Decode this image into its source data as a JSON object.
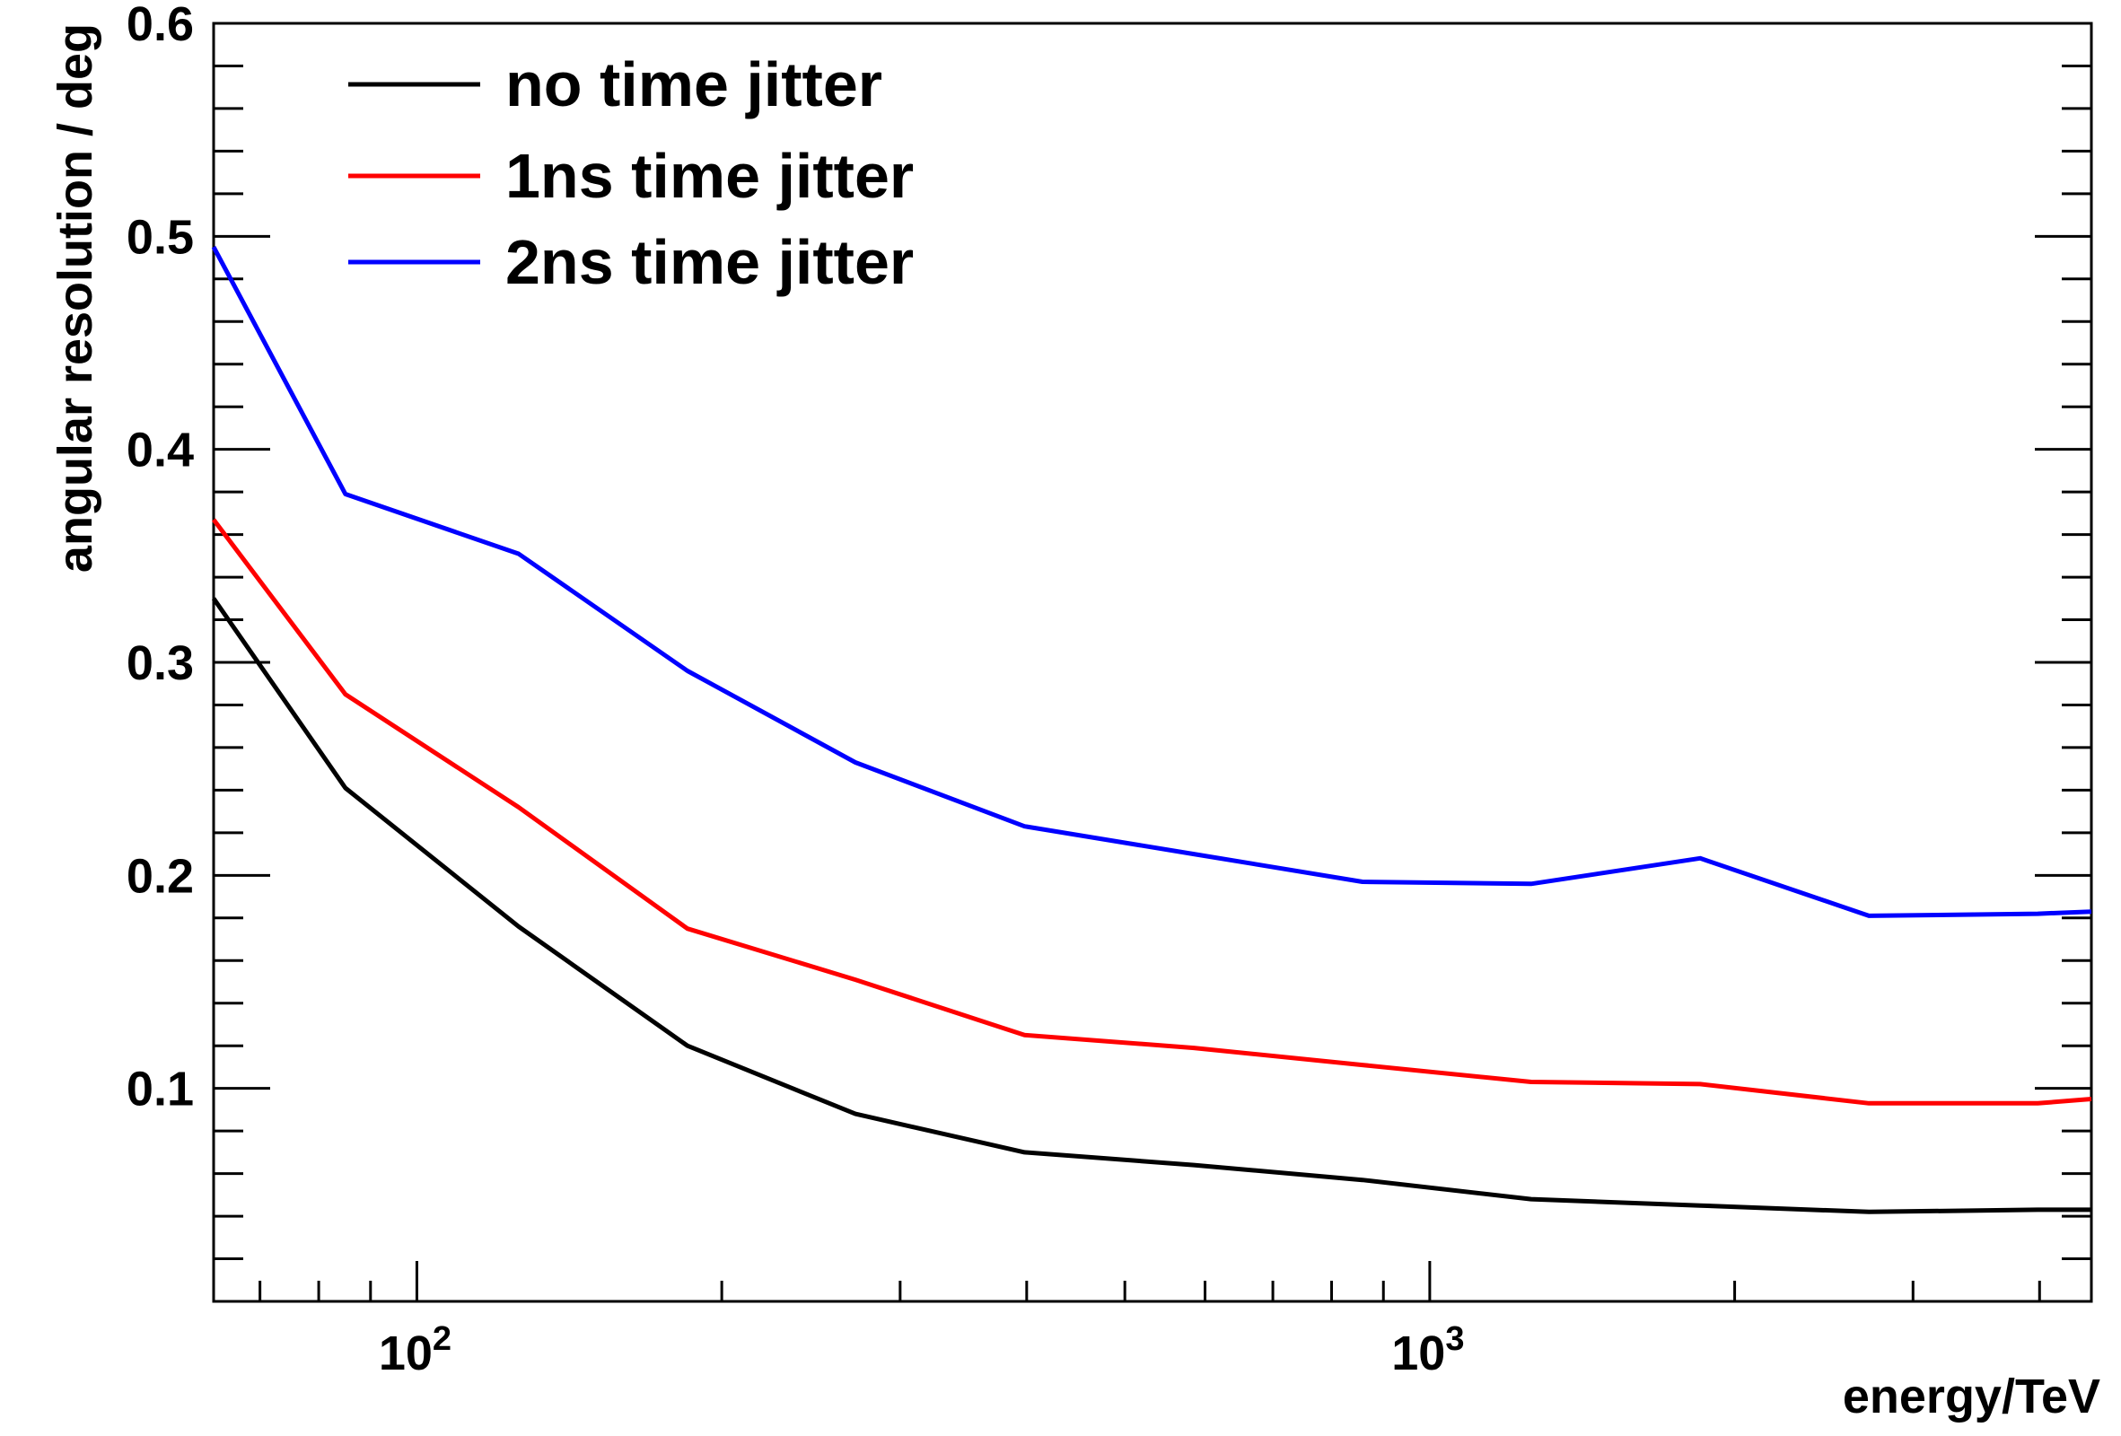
{
  "chart_data": {
    "type": "line",
    "title": "",
    "xlabel": "energy/TeV",
    "ylabel": "angular resolution / deg",
    "x_scale": "log",
    "xlim": [
      63,
      4500
    ],
    "ylim": [
      0,
      0.6
    ],
    "legend_position": "top-left",
    "grid": false,
    "y_ticks": [
      {
        "value": 0.1,
        "label": "0.1"
      },
      {
        "value": 0.2,
        "label": "0.2"
      },
      {
        "value": 0.3,
        "label": "0.3"
      },
      {
        "value": 0.4,
        "label": "0.4"
      },
      {
        "value": 0.5,
        "label": "0.5"
      },
      {
        "value": 0.6,
        "label": "0.6"
      }
    ],
    "x_ticks": [
      {
        "value": 100,
        "base": "10",
        "exp": "2"
      },
      {
        "value": 1000,
        "base": "10",
        "exp": "3"
      }
    ],
    "x": [
      63,
      85,
      126,
      185,
      271,
      398,
      585,
      858,
      1259,
      1849,
      2714,
      3984,
      4500
    ],
    "series": [
      {
        "name": "no time jitter",
        "color": "#000000",
        "values": [
          0.33,
          0.241,
          0.176,
          0.12,
          0.088,
          0.07,
          0.064,
          0.057,
          0.048,
          0.045,
          0.042,
          0.043,
          0.043
        ]
      },
      {
        "name": "1ns time jitter",
        "color": "#ff0000",
        "values": [
          0.367,
          0.285,
          0.232,
          0.175,
          0.151,
          0.125,
          0.119,
          0.111,
          0.103,
          0.102,
          0.093,
          0.093,
          0.095
        ]
      },
      {
        "name": "2ns time jitter",
        "color": "#0000ff",
        "values": [
          0.495,
          0.379,
          0.351,
          0.296,
          0.253,
          0.223,
          0.21,
          0.197,
          0.196,
          0.208,
          0.181,
          0.182,
          0.183
        ]
      }
    ]
  }
}
